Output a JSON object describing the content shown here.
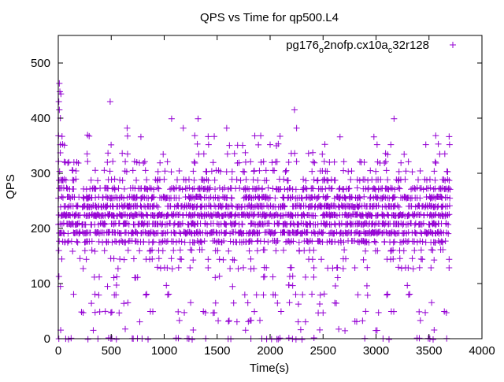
{
  "chart_data": {
    "type": "scatter",
    "title": "QPS vs Time for qp500.L4",
    "xlabel": "Time(s)",
    "ylabel": "QPS",
    "xlim": [
      0,
      4000
    ],
    "ylim": [
      0,
      550
    ],
    "x_ticks": [
      0,
      500,
      1000,
      1500,
      2000,
      2500,
      3000,
      3500,
      4000
    ],
    "y_ticks": [
      0,
      100,
      200,
      300,
      400,
      500
    ],
    "x_tick_labels": [
      "0",
      "500",
      "1000",
      "1500",
      "2000",
      "2500",
      "3000",
      "3500",
      "4000"
    ],
    "y_tick_labels": [
      "0",
      "100",
      "200",
      "300",
      "400",
      "500"
    ],
    "grid": false,
    "legend": {
      "position": "top-right",
      "label_main": "pg176",
      "label_sub1": "o",
      "label_mid": "2nofp.cx10a",
      "label_sub2": "c",
      "label_end": "32r128",
      "color": "#9400d3"
    },
    "marker": "plus",
    "series": [
      {
        "name": "pg176_o2nofp.cx10a_c32r128",
        "color": "#9400d3",
        "note": "Dense scatter of about 3700 one-second samples; values quantized to multiples of roughly 16 QPS, concentrated between 190 and 270 QPS.",
        "x_range": [
          0,
          3700
        ],
        "bands": [
          0,
          16,
          32,
          48,
          64,
          80,
          96,
          112,
          128,
          144,
          160,
          176,
          192,
          208,
          224,
          240,
          256,
          272,
          288,
          304,
          320,
          336,
          352,
          368
        ],
        "band_density": [
          0.1,
          0.02,
          0.05,
          0.06,
          0.05,
          0.06,
          0.06,
          0.07,
          0.1,
          0.12,
          0.15,
          0.55,
          0.8,
          0.75,
          0.95,
          0.8,
          0.7,
          0.45,
          0.25,
          0.18,
          0.14,
          0.06,
          0.04,
          0.02
        ],
        "highlights": [
          {
            "x": 10,
            "y": 463
          },
          {
            "x": 15,
            "y": 448
          },
          {
            "x": 25,
            "y": 444
          },
          {
            "x": 5,
            "y": 430
          },
          {
            "x": 10,
            "y": 415
          },
          {
            "x": 20,
            "y": 400
          },
          {
            "x": 490,
            "y": 430
          },
          {
            "x": 650,
            "y": 382
          },
          {
            "x": 780,
            "y": 366
          },
          {
            "x": 1070,
            "y": 399
          },
          {
            "x": 1180,
            "y": 382
          },
          {
            "x": 1320,
            "y": 399
          },
          {
            "x": 1590,
            "y": 382
          },
          {
            "x": 2000,
            "y": 352
          },
          {
            "x": 2230,
            "y": 415
          },
          {
            "x": 2250,
            "y": 382
          },
          {
            "x": 2200,
            "y": 336
          },
          {
            "x": 2660,
            "y": 366
          },
          {
            "x": 2980,
            "y": 366
          },
          {
            "x": 3010,
            "y": 352
          },
          {
            "x": 3170,
            "y": 399
          },
          {
            "x": 3140,
            "y": 352
          },
          {
            "x": 3090,
            "y": 336
          },
          {
            "x": 3470,
            "y": 352
          },
          {
            "x": 2060,
            "y": 350
          },
          {
            "x": 2860,
            "y": 320
          },
          {
            "x": 3110,
            "y": 334
          }
        ]
      }
    ]
  }
}
